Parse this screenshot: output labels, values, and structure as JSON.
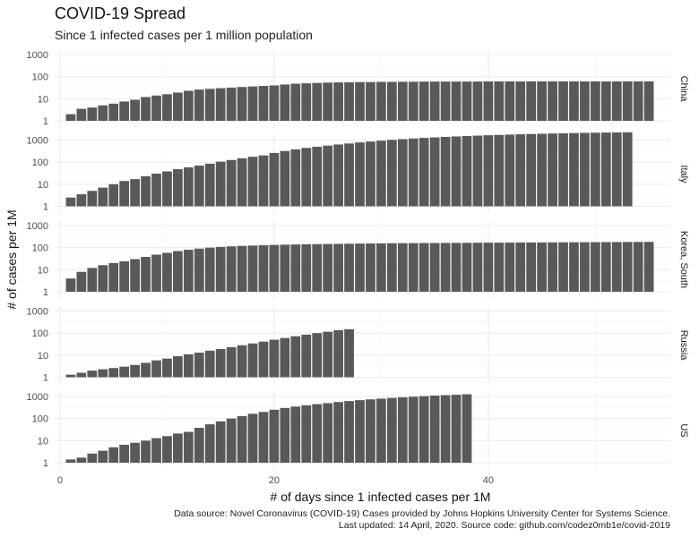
{
  "title": "COVID-19 Spread",
  "subtitle": "Since 1 infected cases per 1 million population",
  "caption_line1": "Data source: Novel Coronavirus (COVID-19) Cases provided by Johns Hopkins University Center for Systems Science.",
  "caption_line2": "Last updated: 14 April, 2020. Source code: github.com/codez0mb1e/covid-2019",
  "chart_data": {
    "type": "bar",
    "xlabel": "# of days since 1 infected cases per 1M",
    "ylabel": "# of cases per 1M",
    "y_scale": "log10",
    "ylim": [
      1,
      1000
    ],
    "xlim": [
      -0.5,
      57
    ],
    "x_ticks": [
      0,
      20,
      40
    ],
    "y_ticks": [
      1,
      10,
      100,
      1000
    ],
    "y_tick_labels": [
      "1",
      "10",
      "100",
      "1000"
    ],
    "grid": true,
    "bar_color": "#595959",
    "facets": [
      {
        "name": "China",
        "start_day": 1,
        "values": [
          2,
          3.5,
          4,
          5,
          6,
          7.5,
          9,
          12,
          14,
          16,
          19,
          23,
          26,
          28,
          30,
          32,
          34,
          36,
          38,
          40,
          44,
          48,
          50,
          52,
          54,
          55,
          56,
          57,
          57,
          58,
          58,
          59,
          59,
          60,
          60,
          60,
          60,
          60,
          60,
          61,
          61,
          61,
          61,
          61,
          61,
          61,
          61,
          61,
          61,
          61,
          61,
          61,
          61,
          61,
          61
        ]
      },
      {
        "name": "Italy",
        "start_day": 1,
        "values": [
          2.5,
          3.5,
          5,
          7,
          10,
          14,
          17,
          23,
          30,
          38,
          48,
          58,
          70,
          85,
          105,
          125,
          150,
          175,
          200,
          260,
          320,
          380,
          440,
          500,
          560,
          630,
          700,
          780,
          860,
          940,
          1020,
          1100,
          1180,
          1250,
          1320,
          1390,
          1460,
          1530,
          1590,
          1650,
          1710,
          1770,
          1830,
          1880,
          1930,
          1980,
          2030,
          2080,
          2120,
          2160,
          2190,
          2220,
          2250
        ]
      },
      {
        "name": "Korea, South",
        "start_day": 1,
        "values": [
          4,
          8,
          12,
          16,
          20,
          24,
          30,
          38,
          48,
          58,
          70,
          80,
          90,
          100,
          108,
          114,
          120,
          124,
          128,
          132,
          136,
          139,
          142,
          144,
          146,
          148,
          150,
          152,
          154,
          156,
          158,
          159,
          160,
          161,
          162,
          163,
          164,
          165,
          166,
          167,
          168,
          169,
          170,
          171,
          172,
          173,
          174,
          175,
          176,
          177,
          178,
          179,
          180,
          181,
          182
        ]
      },
      {
        "name": "Russia",
        "start_day": 1,
        "values": [
          1.3,
          1.6,
          2,
          2.3,
          2.6,
          3,
          3.6,
          4.5,
          5.8,
          7,
          9,
          11,
          13,
          16,
          19,
          23,
          28,
          34,
          41,
          50,
          60,
          72,
          85,
          100,
          115,
          135,
          150
        ]
      },
      {
        "name": "US",
        "start_day": 1,
        "values": [
          1.4,
          1.7,
          2.6,
          3.5,
          5,
          6.5,
          8,
          10,
          13,
          16,
          21,
          25,
          38,
          55,
          75,
          100,
          130,
          165,
          200,
          250,
          300,
          350,
          400,
          450,
          500,
          560,
          620,
          680,
          740,
          800,
          860,
          920,
          980,
          1040,
          1100,
          1150,
          1200,
          1260
        ]
      }
    ]
  }
}
